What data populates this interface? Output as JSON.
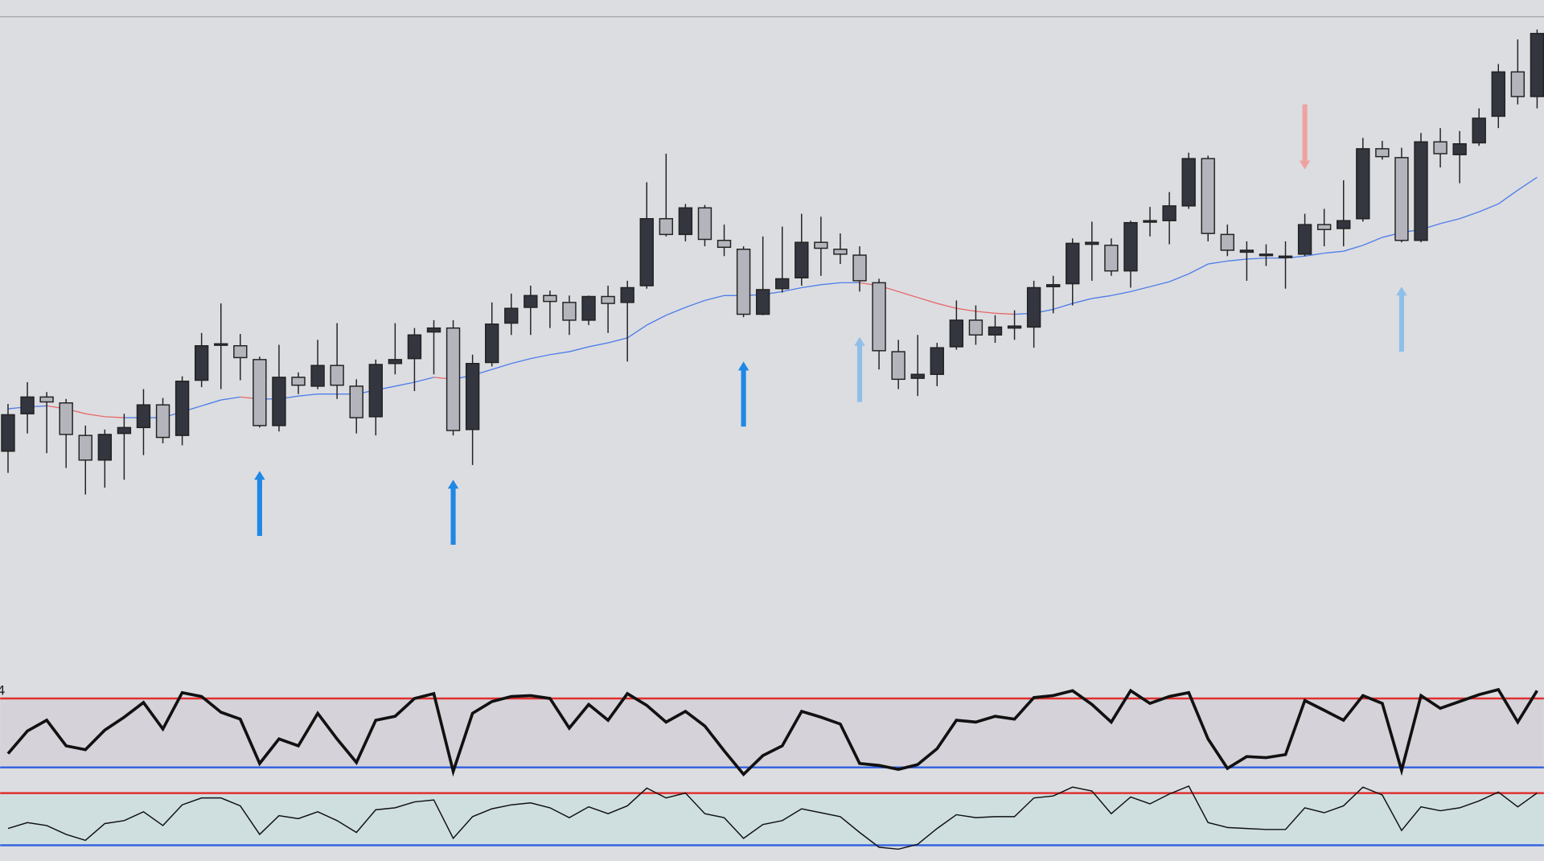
{
  "chart_data": [
    {
      "type": "candlestick",
      "ylim": [
        0,
        663
      ],
      "up_color": "#33353f",
      "down_color": "#b4b5bc",
      "open": [
        222,
        260,
        277,
        271,
        238,
        213,
        240,
        246,
        269,
        238,
        294,
        330,
        329,
        315,
        248,
        297,
        288,
        309,
        288,
        257,
        311,
        316,
        343,
        347,
        244,
        312,
        352,
        368,
        380,
        373,
        355,
        379,
        373,
        390,
        458,
        442,
        469,
        436,
        427,
        361,
        387,
        398,
        434,
        427,
        421,
        393,
        323,
        296,
        300,
        328,
        355,
        340,
        347,
        348,
        389,
        392,
        432,
        431,
        405,
        455,
        456,
        471,
        519,
        442,
        424,
        421,
        419,
        422,
        452,
        448,
        458,
        529,
        520,
        436,
        536,
        523,
        535,
        562,
        607,
        582
      ],
      "high": [
        270,
        292,
        282,
        275,
        248,
        244,
        260,
        285,
        276,
        298,
        342,
        372,
        341,
        318,
        330,
        302,
        335,
        352,
        295,
        315,
        352,
        347,
        355,
        355,
        320,
        373,
        382,
        390,
        385,
        380,
        380,
        390,
        395,
        495,
        524,
        473,
        472,
        452,
        430,
        440,
        450,
        463,
        460,
        443,
        430,
        397,
        335,
        340,
        332,
        375,
        370,
        360,
        365,
        395,
        400,
        438,
        455,
        438,
        456,
        470,
        485,
        525,
        522,
        452,
        435,
        432,
        435,
        463,
        468,
        497,
        540,
        537,
        530,
        545,
        550,
        547,
        570,
        615,
        640,
        650
      ],
      "low": [
        200,
        240,
        220,
        205,
        178,
        185,
        193,
        218,
        230,
        228,
        287,
        285,
        294,
        246,
        242,
        280,
        285,
        275,
        240,
        238,
        300,
        283,
        300,
        238,
        208,
        308,
        340,
        340,
        347,
        340,
        350,
        342,
        313,
        387,
        440,
        435,
        430,
        420,
        358,
        360,
        383,
        390,
        400,
        412,
        384,
        305,
        285,
        278,
        288,
        325,
        330,
        332,
        335,
        327,
        362,
        370,
        395,
        400,
        388,
        440,
        432,
        468,
        435,
        420,
        395,
        410,
        387,
        420,
        430,
        430,
        455,
        518,
        434,
        434,
        510,
        494,
        532,
        550,
        574,
        570
      ],
      "close": [
        259,
        277,
        272,
        239,
        213,
        239,
        246,
        269,
        236,
        293,
        329,
        331,
        317,
        248,
        297,
        289,
        309,
        289,
        256,
        310,
        315,
        340,
        347,
        243,
        311,
        351,
        367,
        380,
        374,
        355,
        379,
        372,
        388,
        458,
        442,
        469,
        437,
        429,
        361,
        386,
        397,
        434,
        428,
        422,
        395,
        324,
        295,
        300,
        327,
        355,
        340,
        348,
        349,
        388,
        391,
        433,
        434,
        405,
        454,
        456,
        471,
        519,
        443,
        426,
        426,
        422,
        420,
        452,
        447,
        456,
        529,
        521,
        436,
        536,
        524,
        534,
        560,
        607,
        582,
        646
      ],
      "ma": {
        "values": [
          265,
          267,
          268,
          265,
          260,
          257,
          256,
          256,
          256,
          262,
          268,
          274,
          277,
          275,
          275,
          278,
          280,
          280,
          280,
          284,
          288,
          292,
          297,
          295,
          299,
          305,
          311,
          316,
          320,
          323,
          328,
          332,
          337,
          350,
          360,
          368,
          375,
          380,
          380,
          381,
          384,
          388,
          391,
          393,
          393,
          390,
          384,
          378,
          372,
          367,
          364,
          362,
          361,
          362,
          366,
          372,
          377,
          380,
          384,
          389,
          394,
          402,
          412,
          415,
          417,
          418,
          418,
          420,
          423,
          425,
          431,
          439,
          444,
          447,
          453,
          458,
          465,
          473,
          487,
          500
        ],
        "rise_color": "#4f7ee8",
        "fall_color": "#e86a6a"
      },
      "signals": [
        {
          "index": 13,
          "direction": "up",
          "value": 202,
          "color": "#1e88e5"
        },
        {
          "index": 23,
          "direction": "up",
          "value": 193,
          "color": "#1e88e5"
        },
        {
          "index": 38,
          "direction": "up",
          "value": 313,
          "color": "#1e88e5"
        },
        {
          "index": 44,
          "direction": "up",
          "value": 338,
          "color": "#8fbfe8"
        },
        {
          "index": 67,
          "direction": "down",
          "value": 508,
          "color": "#eea3a3"
        },
        {
          "index": 72,
          "direction": "up",
          "value": 389,
          "color": "#8fbfe8"
        }
      ]
    },
    {
      "type": "line",
      "label": "4",
      "ylim": [
        0,
        100
      ],
      "color": "#111111",
      "band_color": "#d5d3d9",
      "hlines": [
        80,
        20
      ],
      "hline_colors": [
        "#e0312f",
        "#2f5fe0"
      ],
      "values": [
        32.0,
        51.7,
        61.1,
        38.8,
        35.4,
        52.5,
        63.7,
        76.5,
        53.4,
        85.1,
        81.7,
        68.0,
        62.0,
        23.4,
        44.8,
        38.8,
        67.1,
        44.8,
        24.3,
        61.1,
        64.5,
        80.0,
        84.2,
        16.5,
        67.1,
        77.4,
        81.7,
        82.5,
        80.0,
        54.2,
        74.8,
        61.1,
        84.2,
        74.0,
        59.4,
        68.8,
        56.0,
        34.5,
        14.0,
        30.3,
        38.8,
        68.8,
        63.7,
        57.7,
        23.4,
        21.7,
        18.3,
        22.5,
        36.3,
        61.1,
        59.4,
        64.5,
        62.0,
        80.8,
        82.5,
        86.8,
        74.8,
        59.4,
        86.8,
        75.7,
        81.7,
        85.1,
        44.8,
        19.1,
        29.4,
        28.5,
        31.1,
        78.2,
        69.7,
        61.1,
        82.5,
        75.7,
        17.4,
        82.5,
        71.4,
        77.4,
        83.4,
        87.7,
        59.4,
        86.8
      ]
    },
    {
      "type": "line",
      "ylim": [
        0,
        100
      ],
      "color": "#111111",
      "band_color": "#cfdfe0",
      "hlines": [
        80,
        20
      ],
      "hline_colors": [
        "#e0312f",
        "#2f5fe0"
      ],
      "values": [
        39.3,
        46.1,
        42.7,
        32.5,
        25.7,
        45.0,
        48.4,
        58.6,
        42.7,
        66.5,
        74.4,
        74.4,
        65.3,
        32.5,
        54.0,
        50.6,
        58.6,
        48.4,
        34.8,
        60.8,
        63.1,
        69.9,
        72.1,
        28.0,
        52.9,
        61.9,
        66.5,
        68.7,
        63.1,
        51.8,
        64.2,
        56.3,
        65.3,
        85.7,
        74.4,
        80.1,
        56.3,
        51.8,
        28.0,
        43.8,
        48.4,
        61.9,
        57.4,
        52.9,
        34.8,
        17.8,
        15.5,
        21.2,
        39.3,
        55.2,
        51.8,
        52.9,
        52.9,
        74.4,
        76.7,
        86.9,
        82.3,
        56.3,
        75.5,
        67.6,
        78.9,
        88.0,
        46.1,
        40.4,
        39.3,
        38.2,
        38.2,
        63.1,
        57.4,
        65.3,
        86.9,
        77.8,
        37.0,
        64.2,
        59.7,
        63.1,
        71.0,
        81.2,
        64.2,
        80.1
      ]
    }
  ]
}
